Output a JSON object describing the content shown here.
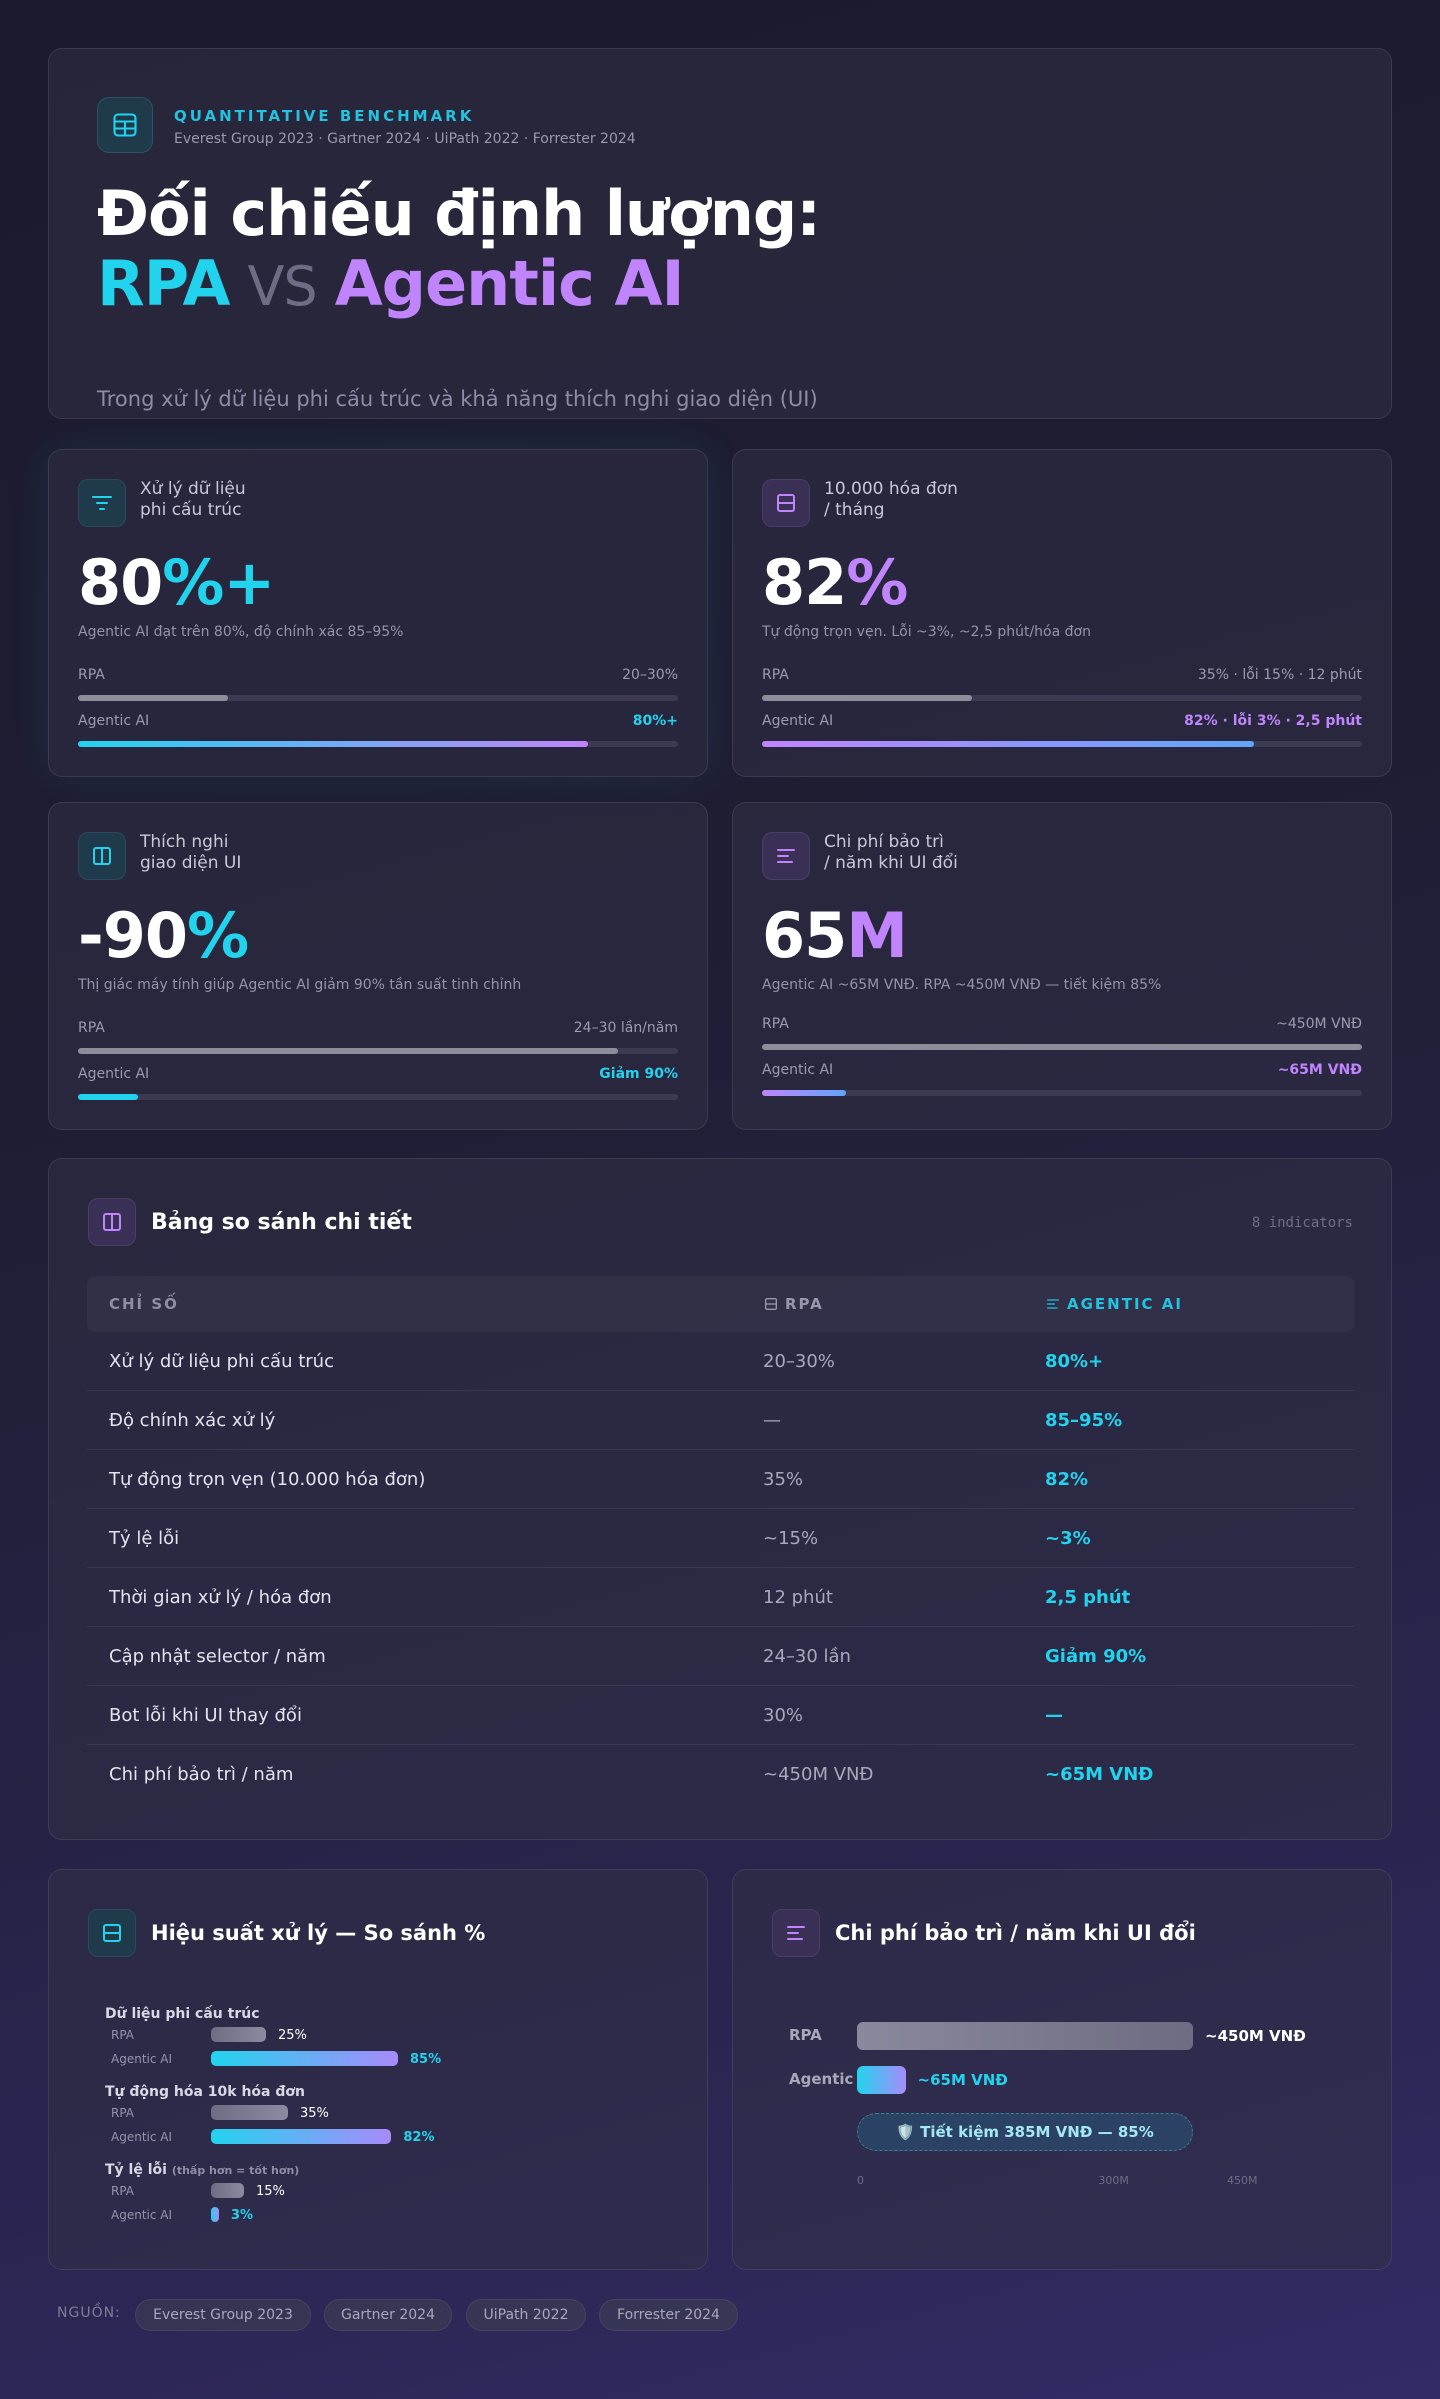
{
  "hero": {
    "eyebrow": "QUANTITATIVE BENCHMARK",
    "sources": "Everest Group 2023 · Gartner 2024 · UiPath 2022 · Forrester 2024",
    "title_line1": "Đối chiếu định lượng:",
    "title_rpa": "RPA",
    "title_vs": "VS",
    "title_ai": "Agentic AI",
    "subtitle": "Trong xử lý dữ liệu phi cấu trúc và khả năng thích nghi giao diện (UI)",
    "icon": "table-icon"
  },
  "kpis": [
    {
      "icon": "filter-icon",
      "label_1": "Xử lý dữ liệu",
      "label_2": "phi cấu trúc",
      "value_main": "80",
      "value_accent": "%+",
      "note": "Agentic AI đạt trên 80%, độ chính xác 85–95%",
      "rpa_label": "RPA",
      "rpa_value": "20–30%",
      "rpa_fill": 0.25,
      "ai_label": "Agentic AI",
      "ai_value": "80%+",
      "ai_fill": 0.85
    },
    {
      "icon": "layout-rows-icon",
      "label_1": "10.000 hóa đơn",
      "label_2": "/ tháng",
      "value_main": "82",
      "value_accent": "%",
      "note": "Tự động trọn vẹn. Lỗi ~3%, ~2,5 phút/hóa đơn",
      "rpa_label": "RPA",
      "rpa_value": "35% · lỗi 15% · 12 phút",
      "rpa_fill": 0.35,
      "ai_label": "Agentic AI",
      "ai_value": "82% · lỗi 3% · 2,5 phút",
      "ai_fill": 0.82
    },
    {
      "icon": "columns-icon",
      "label_1": "Thích nghi",
      "label_2": "giao diện UI",
      "value_main": "-90",
      "value_accent": "%",
      "note": "Thị giác máy tính giúp Agentic AI giảm 90% tần suất tinh chỉnh",
      "rpa_label": "RPA",
      "rpa_value": "24–30 lần/năm",
      "rpa_fill": 0.9,
      "ai_label": "Agentic AI",
      "ai_value": "Giảm 90%",
      "ai_fill": 0.1
    },
    {
      "icon": "menu-lines-icon",
      "label_1": "Chi phí bảo trì",
      "label_2": "/ năm khi UI đổi",
      "value_main": "65",
      "value_accent": "M",
      "note": "Agentic AI ~65M VNĐ. RPA ~450M VNĐ — tiết kiệm 85%",
      "rpa_label": "RPA",
      "rpa_value": "~450M VNĐ",
      "rpa_fill": 1.0,
      "ai_label": "Agentic AI",
      "ai_value": "~65M VNĐ",
      "ai_fill": 0.14
    }
  ],
  "table": {
    "title": "Bảng so sánh chi tiết",
    "count": "8 indicators",
    "headers": {
      "indicator": "CHỈ SỐ",
      "rpa": "RPA",
      "ai": "AGENTIC AI"
    },
    "rows": [
      {
        "indicator": "Xử lý dữ liệu phi cấu trúc",
        "rpa": "20–30%",
        "ai": "80%+"
      },
      {
        "indicator": "Độ chính xác xử lý",
        "rpa": "—",
        "ai": "85–95%"
      },
      {
        "indicator": "Tự động trọn vẹn (10.000 hóa đơn)",
        "rpa": "35%",
        "ai": "82%"
      },
      {
        "indicator": "Tỷ lệ lỗi",
        "rpa": "~15%",
        "ai": "~3%"
      },
      {
        "indicator": "Thời gian xử lý / hóa đơn",
        "rpa": "12 phút",
        "ai": "2,5 phút"
      },
      {
        "indicator": "Cập nhật selector / năm",
        "rpa": "24–30 lần",
        "ai": "Giảm 90%"
      },
      {
        "indicator": "Bot lỗi khi UI thay đổi",
        "rpa": "30%",
        "ai": "—"
      },
      {
        "indicator": "Chi phí bảo trì / năm",
        "rpa": "~450M VNĐ",
        "ai": "~65M VNĐ"
      }
    ]
  },
  "perf_chart": {
    "title": "Hiệu suất xử lý — So sánh %",
    "rpa_label": "RPA",
    "ai_label": "Agentic AI",
    "groups": [
      {
        "title": "Dữ liệu phi cấu trúc",
        "note": "",
        "rpa_text": "25%",
        "ai_text": "85%"
      },
      {
        "title": "Tự động hóa 10k hóa đơn",
        "note": "",
        "rpa_text": "35%",
        "ai_text": "82%"
      },
      {
        "title": "Tỷ lệ lỗi",
        "note": "(thấp hơn = tốt hơn)",
        "rpa_text": "15%",
        "ai_text": "3%"
      }
    ]
  },
  "cost_chart": {
    "title": "Chi phí bảo trì / năm khi UI đổi",
    "rpa_label": "RPA",
    "ai_label": "Agentic",
    "rpa_text": "~450M VNĐ",
    "ai_text": "~65M VNĐ",
    "saving": "🛡️ Tiết kiệm 385M VNĐ — 85%",
    "ticks": [
      "0",
      "300M",
      "450M"
    ]
  },
  "chart_data": [
    {
      "type": "bar",
      "title": "Hiệu suất xử lý — So sánh %",
      "categories": [
        "Dữ liệu phi cấu trúc",
        "Tự động hóa 10k hóa đơn",
        "Tỷ lệ lỗi"
      ],
      "series": [
        {
          "name": "RPA",
          "values": [
            25,
            35,
            15
          ]
        },
        {
          "name": "Agentic AI",
          "values": [
            85,
            82,
            3
          ]
        }
      ],
      "xlim": [
        0,
        100
      ]
    },
    {
      "type": "bar",
      "title": "Chi phí bảo trì / năm khi UI đổi",
      "categories": [
        "RPA",
        "Agentic"
      ],
      "values": [
        450,
        65
      ],
      "xlim": [
        0,
        450
      ],
      "ticks": [
        0,
        300,
        450
      ]
    }
  ],
  "footer": {
    "label": "NGUỒN:",
    "chips": [
      "Everest Group 2023",
      "Gartner 2024",
      "UiPath 2022",
      "Forrester 2024"
    ]
  },
  "colors": {
    "cyan": "#22d3ee",
    "purple": "#c084fc",
    "grey": "#8d8c99"
  }
}
